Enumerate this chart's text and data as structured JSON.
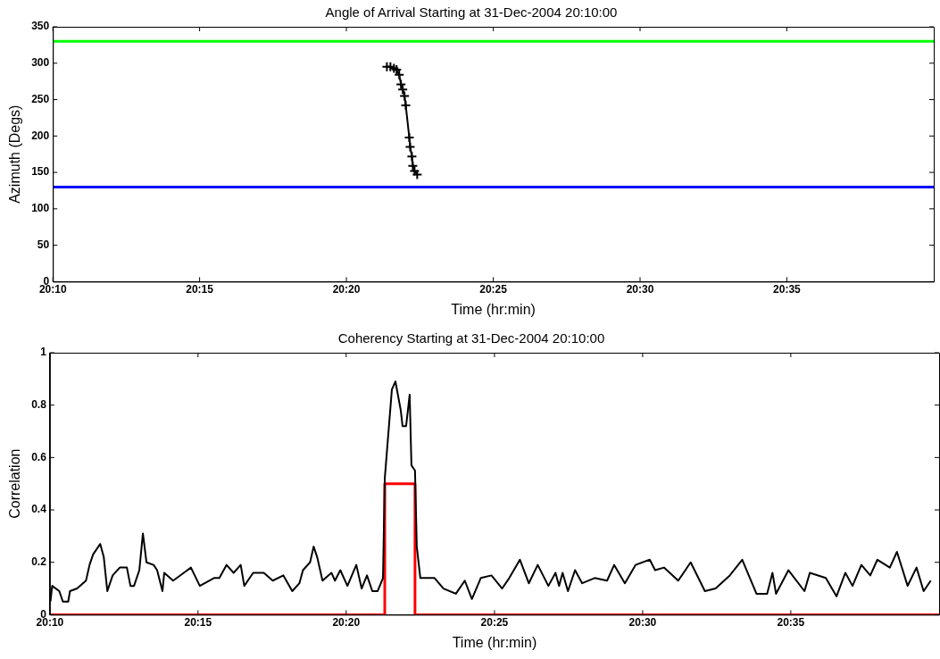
{
  "chart_data": [
    {
      "type": "line",
      "title": "Angle of Arrival Starting at 31-Dec-2004 20:10:00",
      "xlabel": "Time (hr:min)",
      "ylabel": "Azimuth (Degs)",
      "xlim": [
        20.1667,
        20.6667
      ],
      "xticks": [
        {
          "value": 20.1667,
          "label": "20:10"
        },
        {
          "value": 20.25,
          "label": "20:15"
        },
        {
          "value": 20.3333,
          "label": "20:20"
        },
        {
          "value": 20.4167,
          "label": "20:25"
        },
        {
          "value": 20.5,
          "label": "20:30"
        },
        {
          "value": 20.5833,
          "label": "20:35"
        }
      ],
      "ylim": [
        0,
        350
      ],
      "yticks": [
        0,
        50,
        100,
        150,
        200,
        250,
        300,
        350
      ],
      "grid": false,
      "legend": false,
      "marker": "cross",
      "line_style": "solid",
      "ref_lines": [
        {
          "axis": "y",
          "value": 330,
          "color": "#00ff00"
        },
        {
          "axis": "y",
          "value": 130,
          "color": "#0000ff"
        }
      ],
      "series": [
        {
          "color": "#000000",
          "x": [
            20.3563,
            20.3583,
            20.3603,
            20.3618,
            20.3633,
            20.3643,
            20.3653,
            20.3663,
            20.367,
            20.369,
            20.3695,
            20.3705,
            20.371,
            20.372,
            20.3735
          ],
          "values": [
            295,
            295,
            293,
            291,
            284,
            271,
            264,
            255,
            242,
            198,
            185,
            172,
            159,
            152,
            147
          ]
        }
      ]
    },
    {
      "type": "line",
      "title": "Coherency Starting at 31-Dec-2004 20:10:00",
      "xlabel": "Time (hr:min)",
      "ylabel": "Correlation",
      "xlim": [
        20.1667,
        20.6667
      ],
      "xticks": [
        {
          "value": 20.1667,
          "label": "20:10"
        },
        {
          "value": 20.25,
          "label": "20:15"
        },
        {
          "value": 20.3333,
          "label": "20:20"
        },
        {
          "value": 20.4167,
          "label": "20:25"
        },
        {
          "value": 20.5,
          "label": "20:30"
        },
        {
          "value": 20.5833,
          "label": "20:35"
        }
      ],
      "ylim": [
        0,
        1
      ],
      "yticks": [
        0,
        0.2,
        0.4,
        0.6,
        0.8,
        1
      ],
      "grid": false,
      "legend": false,
      "marker": "none",
      "line_style": "solid",
      "series": [
        {
          "color": "#000000",
          "x": [
            20.167,
            20.168,
            20.172,
            20.174,
            20.177,
            20.178,
            20.182,
            20.187,
            20.189,
            20.191,
            20.195,
            20.197,
            20.199,
            20.202,
            20.206,
            20.21,
            20.212,
            20.214,
            20.217,
            20.219,
            20.221,
            20.225,
            20.227,
            20.23,
            20.231,
            20.236,
            20.242,
            20.246,
            20.251,
            20.259,
            20.262,
            20.266,
            20.27,
            20.274,
            20.276,
            20.281,
            20.287,
            20.292,
            20.298,
            20.303,
            20.307,
            20.309,
            20.313,
            20.315,
            20.317,
            20.32,
            20.325,
            20.327,
            20.33,
            20.334,
            20.339,
            20.342,
            20.345,
            20.348,
            20.351,
            20.354,
            20.355,
            20.359,
            20.361,
            20.364,
            20.365,
            20.367,
            20.369,
            20.37,
            20.372,
            20.373,
            20.375,
            20.383,
            20.388,
            20.395,
            20.4,
            20.404,
            20.409,
            20.415,
            20.421,
            20.425,
            20.431,
            20.436,
            20.441,
            20.447,
            20.451,
            20.453,
            20.455,
            20.458,
            20.462,
            20.466,
            20.473,
            20.48,
            20.484,
            20.49,
            20.496,
            20.504,
            20.507,
            20.512,
            20.52,
            20.527,
            20.535,
            20.541,
            20.549,
            20.556,
            20.564,
            20.57,
            20.573,
            20.575,
            20.582,
            20.591,
            20.594,
            20.603,
            20.609,
            20.614,
            20.618,
            20.623,
            20.628,
            20.632,
            20.639,
            20.643,
            20.649,
            20.654,
            20.658,
            20.662
          ],
          "values": [
            0.05,
            0.11,
            0.09,
            0.05,
            0.05,
            0.09,
            0.1,
            0.13,
            0.19,
            0.23,
            0.27,
            0.22,
            0.09,
            0.15,
            0.18,
            0.18,
            0.11,
            0.11,
            0.17,
            0.31,
            0.2,
            0.19,
            0.17,
            0.09,
            0.16,
            0.13,
            0.16,
            0.18,
            0.11,
            0.14,
            0.14,
            0.19,
            0.16,
            0.19,
            0.11,
            0.16,
            0.16,
            0.13,
            0.15,
            0.09,
            0.12,
            0.17,
            0.2,
            0.26,
            0.22,
            0.13,
            0.16,
            0.13,
            0.17,
            0.11,
            0.19,
            0.1,
            0.15,
            0.09,
            0.09,
            0.14,
            0.52,
            0.86,
            0.89,
            0.78,
            0.72,
            0.72,
            0.84,
            0.57,
            0.55,
            0.26,
            0.14,
            0.14,
            0.1,
            0.08,
            0.13,
            0.06,
            0.14,
            0.15,
            0.1,
            0.14,
            0.21,
            0.12,
            0.19,
            0.11,
            0.16,
            0.11,
            0.16,
            0.09,
            0.17,
            0.12,
            0.14,
            0.13,
            0.19,
            0.12,
            0.19,
            0.21,
            0.17,
            0.18,
            0.13,
            0.2,
            0.09,
            0.1,
            0.15,
            0.21,
            0.08,
            0.08,
            0.16,
            0.08,
            0.17,
            0.09,
            0.16,
            0.14,
            0.07,
            0.16,
            0.11,
            0.19,
            0.15,
            0.21,
            0.18,
            0.24,
            0.11,
            0.18,
            0.09,
            0.13
          ]
        },
        {
          "color": "#ff0000",
          "x": [
            20.1667,
            20.355,
            20.355,
            20.372,
            20.372,
            20.6667
          ],
          "values": [
            0,
            0,
            0.5,
            0.5,
            0,
            0
          ]
        }
      ]
    }
  ]
}
